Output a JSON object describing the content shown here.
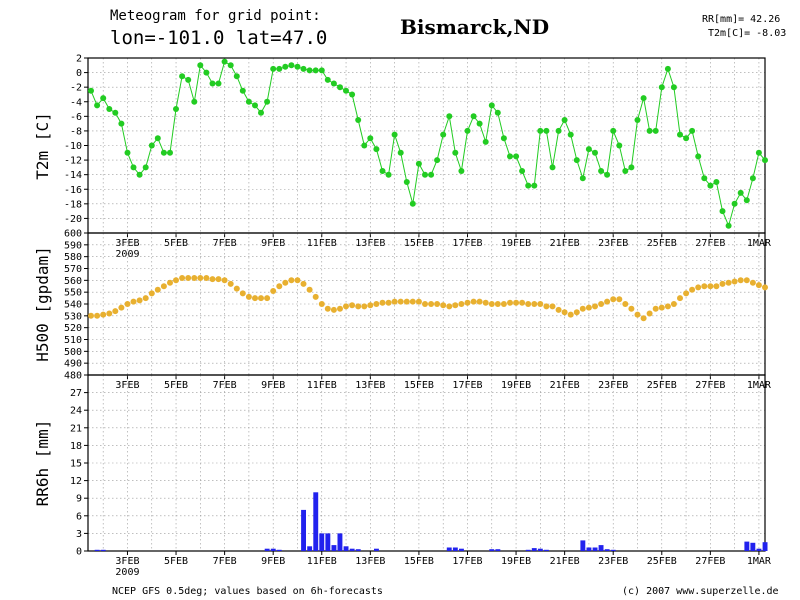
{
  "header": {
    "title_line1": "Meteogram for grid point:",
    "title_line2": "lon=-101.0 lat=47.0",
    "location": "Bismarck,ND",
    "stat_rr": "RR[mm]= 42.26",
    "stat_t2m": "T2m[C]= -8.03"
  },
  "footer": {
    "left": "NCEP GFS 0.5deg; values based on 6h-forecasts",
    "right": "(c) 2007 www.superzelle.de"
  },
  "colors": {
    "t2m": "#22cc22",
    "h500": "#e8b030",
    "rr6h": "#2222ee",
    "grid": "#999999"
  },
  "chart_data": [
    {
      "type": "line",
      "ylabel": "T2m [C]",
      "ylim": [
        -22,
        2
      ],
      "yticks": [
        2,
        0,
        -2,
        -4,
        -6,
        -8,
        -10,
        -12,
        -14,
        -16,
        -18,
        -20
      ],
      "x_start": "2009-02-01T12:00",
      "x_step_hours": 6,
      "x_tick_labels": [
        "3FEB",
        "5FEB",
        "7FEB",
        "9FEB",
        "11FEB",
        "13FEB",
        "15FEB",
        "17FEB",
        "19FEB",
        "21FEB",
        "23FEB",
        "25FEB",
        "27FEB",
        "1MAR"
      ],
      "x_year_label": "2009",
      "grid": true,
      "series": [
        {
          "values": [
            -2.5,
            -4.5,
            -3.5,
            -5,
            -5.5,
            -7,
            -11,
            -13,
            -14,
            -13,
            -10,
            -9,
            -11,
            -11,
            -5,
            -0.5,
            -1,
            -4,
            1,
            0,
            -1.5,
            -1.5,
            1.5,
            1,
            -0.5,
            -2.5,
            -4,
            -4.5,
            -5.5,
            -4,
            0.5,
            0.5,
            0.8,
            1,
            0.8,
            0.5,
            0.3,
            0.3,
            0.3,
            -1,
            -1.5,
            -2,
            -2.5,
            -3,
            -6.5,
            -10,
            -9,
            -10.5,
            -13.5,
            -14,
            -8.5,
            -11,
            -15,
            -18,
            -12.5,
            -14,
            -14,
            -12,
            -8.5,
            -6,
            -11,
            -13.5,
            -8,
            -6,
            -7,
            -9.5,
            -4.5,
            -5.5,
            -9,
            -11.5,
            -11.5,
            -13.5,
            -15.5,
            -15.5,
            -8,
            -8,
            -13,
            -8,
            -6.5,
            -8.5,
            -12,
            -14.5,
            -10.5,
            -11,
            -13.5,
            -14,
            -8,
            -10,
            -13.5,
            -13,
            -6.5,
            -3.5,
            -8,
            -8,
            -2,
            0.5,
            -2,
            -8.5,
            -9,
            -8,
            -11.5,
            -14.5,
            -15.5,
            -15,
            -19,
            -21,
            -18,
            -16.5,
            -17.5,
            -14.5,
            -11,
            -12
          ]
        }
      ]
    },
    {
      "type": "line",
      "ylabel": "H500 [gpdam]",
      "ylim": [
        480,
        600
      ],
      "yticks": [
        600,
        590,
        580,
        570,
        560,
        550,
        540,
        530,
        520,
        510,
        500,
        490,
        480
      ],
      "x_start": "2009-02-01T12:00",
      "x_step_hours": 6,
      "x_tick_labels": [
        "3FEB",
        "5FEB",
        "7FEB",
        "9FEB",
        "11FEB",
        "13FEB",
        "15FEB",
        "17FEB",
        "19FEB",
        "21FEB",
        "23FEB",
        "25FEB",
        "27FEB",
        "1MAR"
      ],
      "grid": true,
      "series": [
        {
          "values": [
            530,
            530,
            531,
            532,
            534,
            537,
            540,
            542,
            543,
            545,
            549,
            552,
            555,
            558,
            560,
            562,
            562,
            562,
            562,
            562,
            561,
            561,
            560,
            557,
            553,
            549,
            546,
            545,
            545,
            545,
            551,
            555,
            558,
            560,
            560,
            557,
            552,
            546,
            540,
            536,
            535,
            536,
            538,
            539,
            538,
            538,
            539,
            540,
            541,
            541,
            542,
            542,
            542,
            542,
            542,
            540,
            540,
            540,
            539,
            538,
            539,
            540,
            541,
            542,
            542,
            541,
            540,
            540,
            540,
            541,
            541,
            541,
            540,
            540,
            540,
            538,
            538,
            535,
            533,
            531,
            533,
            536,
            537,
            538,
            540,
            542,
            544,
            544,
            540,
            536,
            531,
            528,
            532,
            536,
            537,
            538,
            540,
            545,
            549,
            552,
            554,
            555,
            555,
            555,
            557,
            558,
            559,
            560,
            560,
            558,
            556,
            554,
            553,
            552,
            551,
            550,
            548,
            547,
            546,
            547,
            549,
            551,
            551,
            550,
            549,
            548,
            547,
            546,
            545,
            545,
            546,
            548,
            550,
            553,
            556,
            557,
            557,
            556
          ]
        }
      ]
    },
    {
      "type": "bar",
      "ylabel": "RR6h [mm]",
      "ylim": [
        0,
        30
      ],
      "yticks": [
        27,
        24,
        21,
        18,
        15,
        12,
        9,
        6,
        3,
        0
      ],
      "x_start": "2009-02-01T12:00",
      "x_step_hours": 6,
      "x_tick_labels": [
        "3FEB",
        "5FEB",
        "7FEB",
        "9FEB",
        "11FEB",
        "13FEB",
        "15FEB",
        "17FEB",
        "19FEB",
        "21FEB",
        "23FEB",
        "25FEB",
        "27FEB",
        "1MAR"
      ],
      "x_year_label": "2009",
      "grid": true,
      "series": [
        {
          "values": [
            0,
            0.2,
            0.2,
            0,
            0,
            0,
            0,
            0,
            0,
            0,
            0,
            0,
            0,
            0,
            0,
            0,
            0,
            0,
            0,
            0,
            0,
            0,
            0,
            0,
            0,
            0,
            0,
            0,
            0,
            0.4,
            0.4,
            0.2,
            0,
            0,
            0,
            7,
            0.8,
            10,
            3,
            3,
            1,
            3,
            0.8,
            0.4,
            0.3,
            0,
            0,
            0.4,
            0,
            0,
            0,
            0,
            0,
            0,
            0,
            0,
            0,
            0,
            0,
            0.6,
            0.6,
            0.4,
            0,
            0,
            0,
            0,
            0.3,
            0.3,
            0,
            0,
            0,
            0,
            0.2,
            0.5,
            0.4,
            0.2,
            0,
            0,
            0,
            0,
            0,
            1.8,
            0.6,
            0.6,
            1,
            0.3,
            0.2,
            0,
            0,
            0,
            0,
            0,
            0,
            0,
            0,
            0,
            0,
            0,
            0,
            0,
            0,
            0,
            0,
            0,
            0,
            0,
            0,
            0,
            1.6,
            1.4,
            0.4,
            1.5,
            0.5,
            0.8,
            1.2,
            2.3,
            1,
            0.5,
            0.3,
            0.2,
            0.2,
            0.3,
            0,
            0,
            0,
            0,
            0,
            0,
            0,
            0,
            0,
            0,
            0,
            0,
            0,
            0
          ]
        }
      ]
    }
  ]
}
